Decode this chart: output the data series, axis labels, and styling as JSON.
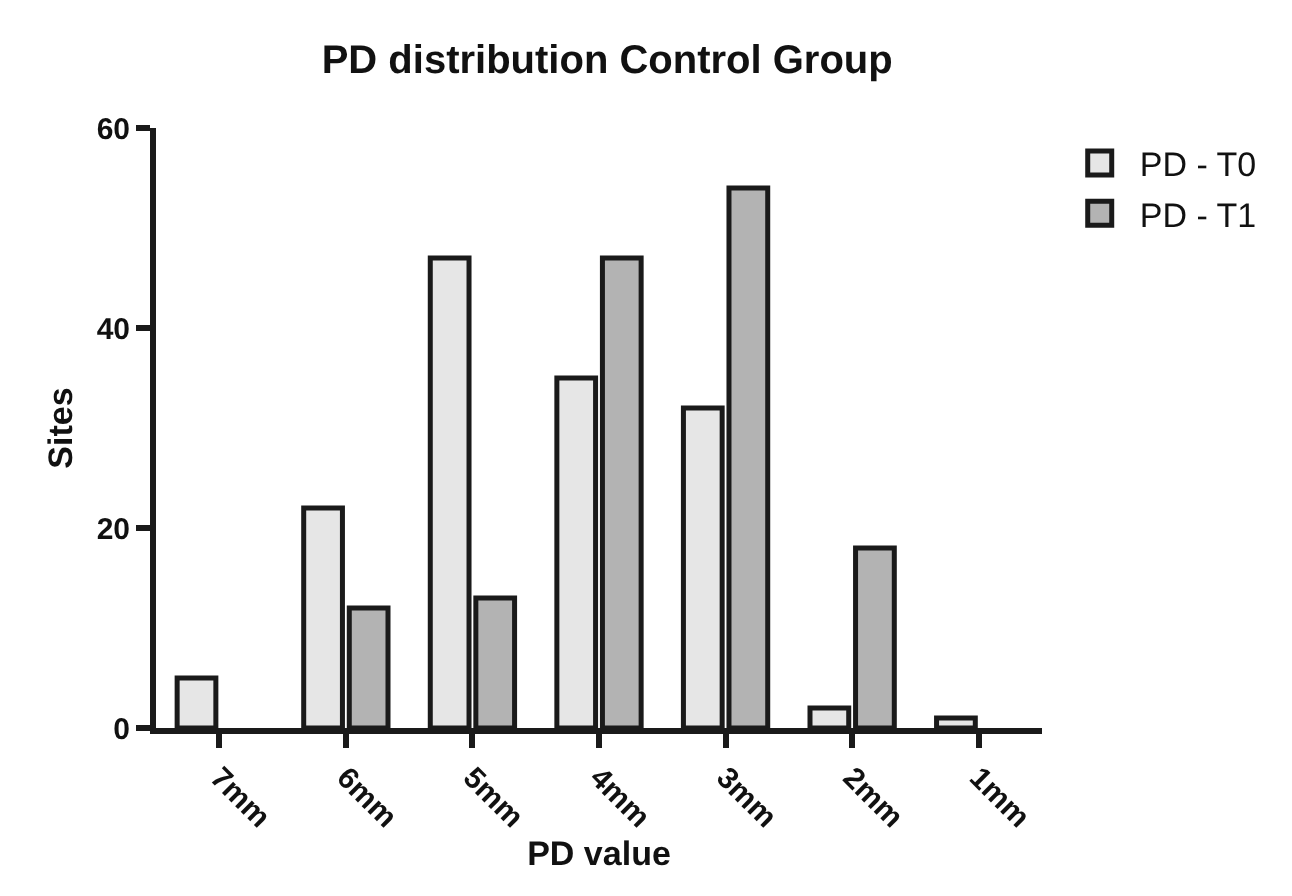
{
  "chart_data": {
    "type": "bar",
    "title": "PD distribution Control Group",
    "xlabel": "PD value",
    "ylabel": "Sites",
    "categories": [
      "7mm",
      "6mm",
      "5mm",
      "4mm",
      "3mm",
      "2mm",
      "1mm"
    ],
    "series": [
      {
        "name": "PD - T0",
        "color": "#e6e6e6",
        "values": [
          5,
          22,
          47,
          35,
          32,
          2,
          1
        ]
      },
      {
        "name": "PD - T1",
        "color": "#b3b3b3",
        "values": [
          null,
          12,
          13,
          47,
          54,
          18,
          null
        ]
      }
    ],
    "ylim": [
      0,
      60
    ],
    "yticks": [
      0,
      20,
      40,
      60
    ],
    "grid": false,
    "legend": "top right"
  }
}
